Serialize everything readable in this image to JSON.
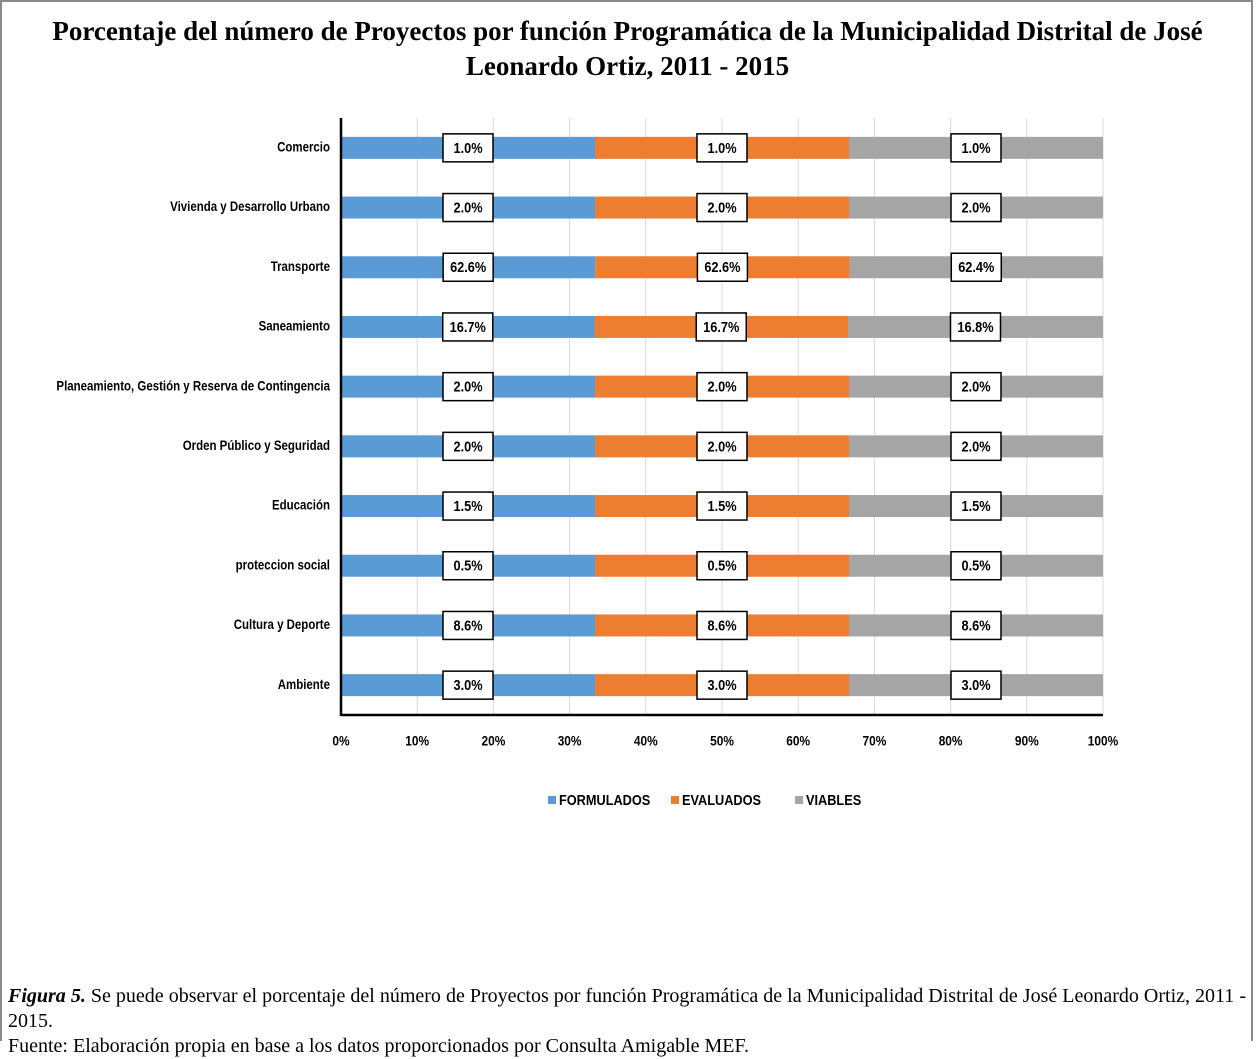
{
  "chart_data": {
    "type": "bar",
    "orientation": "horizontal",
    "stacked": "percent",
    "title": "Porcentaje del número de Proyectos por función Programática de la Municipalidad Distrital de José Leonardo Ortiz, 2011 - 2015",
    "categories": [
      "Comercio",
      "Vivienda y Desarrollo Urbano",
      "Transporte",
      "Saneamiento",
      "Planeamiento, Gestión y Reserva de Contingencia",
      "Orden Público y Seguridad",
      "Educación",
      "proteccion social",
      "Cultura y Deporte",
      "Ambiente"
    ],
    "series": [
      {
        "name": "FORMULADOS",
        "color": "#5b9bd5",
        "values": [
          1.0,
          2.0,
          62.6,
          16.7,
          2.0,
          2.0,
          1.5,
          0.5,
          8.6,
          3.0
        ],
        "value_labels": [
          "1.0%",
          "2.0%",
          "62.6%",
          "16.7%",
          "2.0%",
          "2.0%",
          "1.5%",
          "0.5%",
          "8.6%",
          "3.0%"
        ]
      },
      {
        "name": "EVALUADOS",
        "color": "#ed7d31",
        "values": [
          1.0,
          2.0,
          62.6,
          16.7,
          2.0,
          2.0,
          1.5,
          0.5,
          8.6,
          3.0
        ],
        "value_labels": [
          "1.0%",
          "2.0%",
          "62.6%",
          "16.7%",
          "2.0%",
          "2.0%",
          "1.5%",
          "0.5%",
          "8.6%",
          "3.0%"
        ]
      },
      {
        "name": "VIABLES",
        "color": "#a5a5a5",
        "values": [
          1.0,
          2.0,
          62.4,
          16.8,
          2.0,
          2.0,
          1.5,
          0.5,
          8.6,
          3.0
        ],
        "value_labels": [
          "1.0%",
          "2.0%",
          "62.4%",
          "16.8%",
          "2.0%",
          "2.0%",
          "1.5%",
          "0.5%",
          "8.6%",
          "3.0%"
        ]
      }
    ],
    "xlim": [
      0,
      100
    ],
    "xticks": [
      {
        "value": 0,
        "label": "0%"
      },
      {
        "value": 10,
        "label": "10%"
      },
      {
        "value": 20,
        "label": "20%"
      },
      {
        "value": 30,
        "label": "30%"
      },
      {
        "value": 40,
        "label": "40%"
      },
      {
        "value": 50,
        "label": "50%"
      },
      {
        "value": 60,
        "label": "60%"
      },
      {
        "value": 70,
        "label": "70%"
      },
      {
        "value": 80,
        "label": "80%"
      },
      {
        "value": 90,
        "label": "90%"
      },
      {
        "value": 100,
        "label": "100%"
      }
    ],
    "grid": true,
    "legend": "bottom"
  },
  "figure": {
    "label": "Figura 5.",
    "caption": "Se puede observar el porcentaje del número de Proyectos por función Programática de la Municipalidad Distrital de José Leonardo Ortiz, 2011 - 2015.",
    "source": "Fuente: Elaboración propia en base a los datos proporcionados por Consulta Amigable MEF."
  }
}
